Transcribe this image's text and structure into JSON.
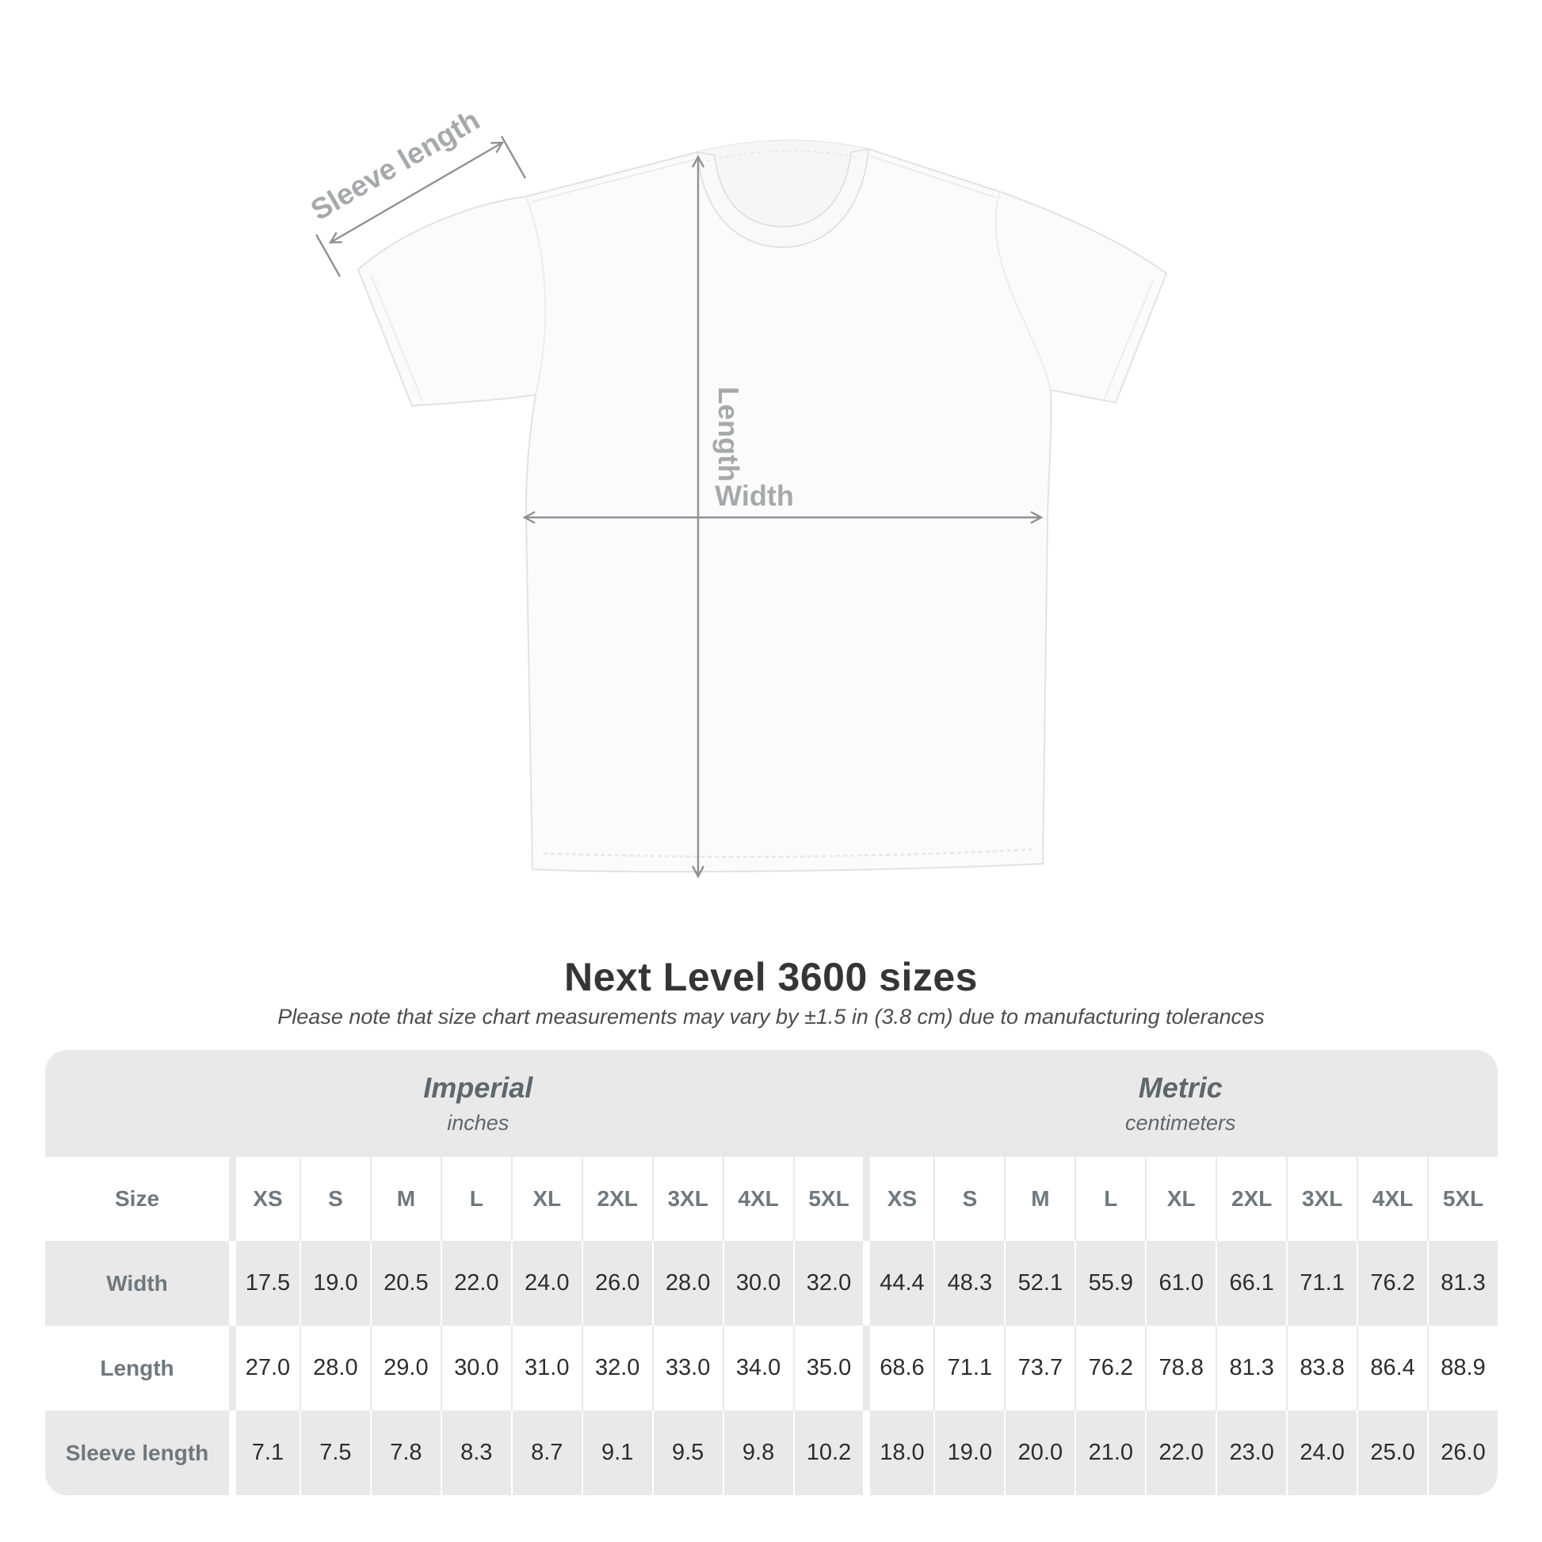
{
  "title": "Next Level 3600 sizes",
  "subtitle": "Please note that size chart measurements may vary by ±1.5 in (3.8 cm) due to manufacturing tolerances",
  "diagram": {
    "labels": {
      "sleeve_length": "Sleeve length",
      "length": "Length",
      "width": "Width"
    }
  },
  "colors": {
    "table_band_gray": "#e9e9e9",
    "table_label_text": "#6f787d",
    "table_value_text": "#2d2d2d",
    "arrow_gray": "#8f9193",
    "diagram_label_gray": "#a6a9ab",
    "shirt_outline": "#e2e2e2"
  },
  "chart_data": {
    "type": "table",
    "title": "Next Level 3600 sizes",
    "size_header_label": "Size",
    "unit_groups": [
      {
        "label": "Imperial",
        "sublabel": "inches"
      },
      {
        "label": "Metric",
        "sublabel": "centimeters"
      }
    ],
    "sizes": [
      "XS",
      "S",
      "M",
      "L",
      "XL",
      "2XL",
      "3XL",
      "4XL",
      "5XL",
      "XS",
      "S",
      "M",
      "L",
      "XL",
      "2XL",
      "3XL",
      "4XL",
      "5XL"
    ],
    "rows": [
      {
        "label": "Width",
        "values": [
          "17.5",
          "19.0",
          "20.5",
          "22.0",
          "24.0",
          "26.0",
          "28.0",
          "30.0",
          "32.0",
          "44.4",
          "48.3",
          "52.1",
          "55.9",
          "61.0",
          "66.1",
          "71.1",
          "76.2",
          "81.3"
        ]
      },
      {
        "label": "Length",
        "values": [
          "27.0",
          "28.0",
          "29.0",
          "30.0",
          "31.0",
          "32.0",
          "33.0",
          "34.0",
          "35.0",
          "68.6",
          "71.1",
          "73.7",
          "76.2",
          "78.8",
          "81.3",
          "83.8",
          "86.4",
          "88.9"
        ]
      },
      {
        "label": "Sleeve length",
        "values": [
          "7.1",
          "7.5",
          "7.8",
          "8.3",
          "8.7",
          "9.1",
          "9.5",
          "9.8",
          "10.2",
          "18.0",
          "19.0",
          "20.0",
          "21.0",
          "22.0",
          "23.0",
          "24.0",
          "25.0",
          "26.0"
        ]
      }
    ]
  }
}
